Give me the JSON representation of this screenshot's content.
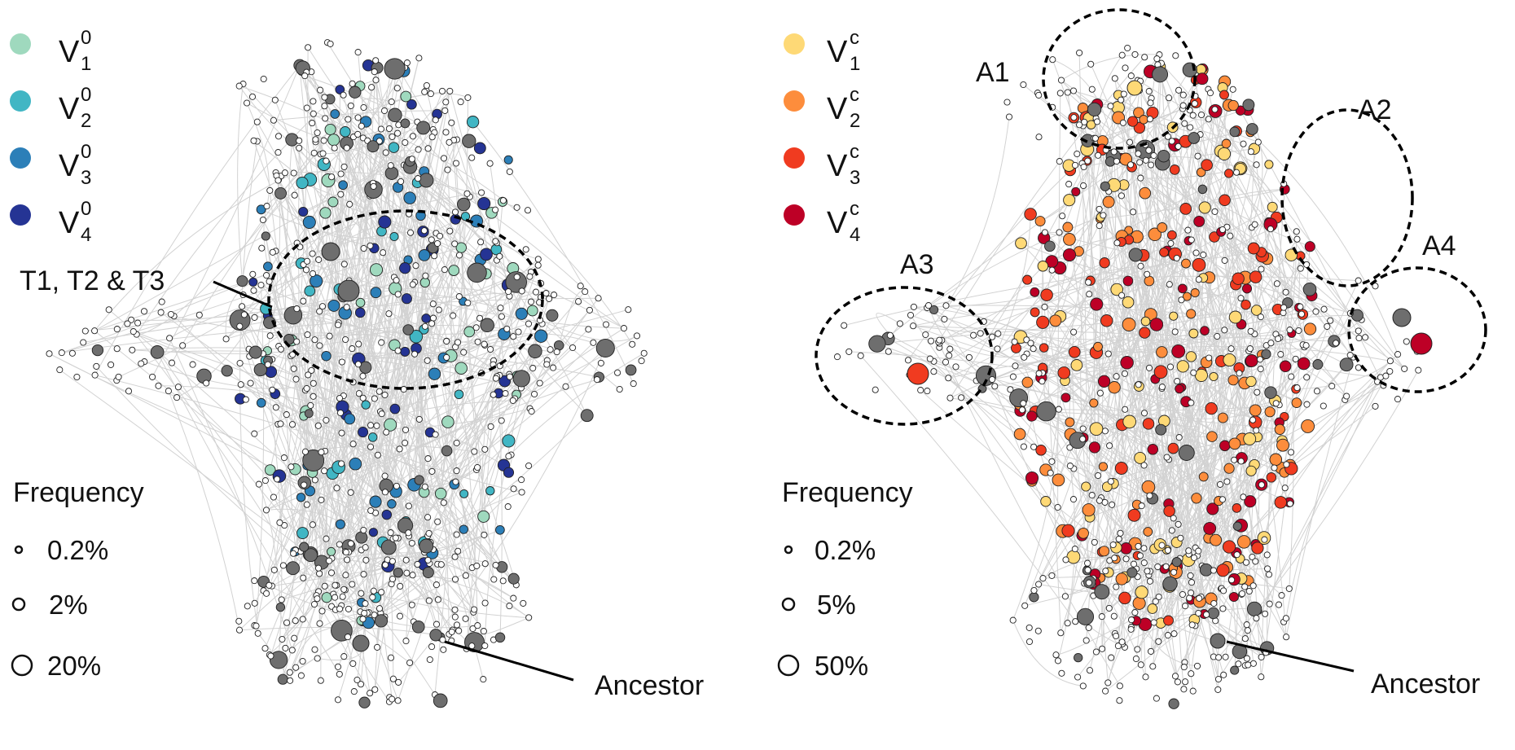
{
  "left_panel": {
    "legend": [
      {
        "base": "V",
        "sub": "1",
        "sup": "0",
        "color": "#9fd9be"
      },
      {
        "base": "V",
        "sub": "2",
        "sup": "0",
        "color": "#41b6c4"
      },
      {
        "base": "V",
        "sub": "3",
        "sup": "0",
        "color": "#2c7fb8"
      },
      {
        "base": "V",
        "sub": "4",
        "sup": "0",
        "color": "#253494"
      }
    ],
    "cluster_label": "T1, T2 & T3",
    "ancestor_label": "Ancestor",
    "frequency_title": "Frequency",
    "frequency_levels": [
      "0.2%",
      "2%",
      "20%"
    ]
  },
  "right_panel": {
    "legend": [
      {
        "base": "V",
        "sub": "1",
        "sup": "c",
        "color": "#fed976"
      },
      {
        "base": "V",
        "sub": "2",
        "sup": "c",
        "color": "#fd8d3c"
      },
      {
        "base": "V",
        "sub": "3",
        "sup": "c",
        "color": "#f03b20"
      },
      {
        "base": "V",
        "sub": "4",
        "sup": "c",
        "color": "#bd0026"
      }
    ],
    "region_labels": [
      "A1",
      "A2",
      "A3",
      "A4"
    ],
    "ancestor_label": "Ancestor",
    "frequency_title": "Frequency",
    "frequency_levels": [
      "0.2%",
      "5%",
      "50%"
    ]
  },
  "colors": {
    "edge": "#d2d2d2",
    "empty_node": "#ffffff",
    "unassigned_node": "#6e6e6e",
    "node_stroke": "#222222"
  }
}
